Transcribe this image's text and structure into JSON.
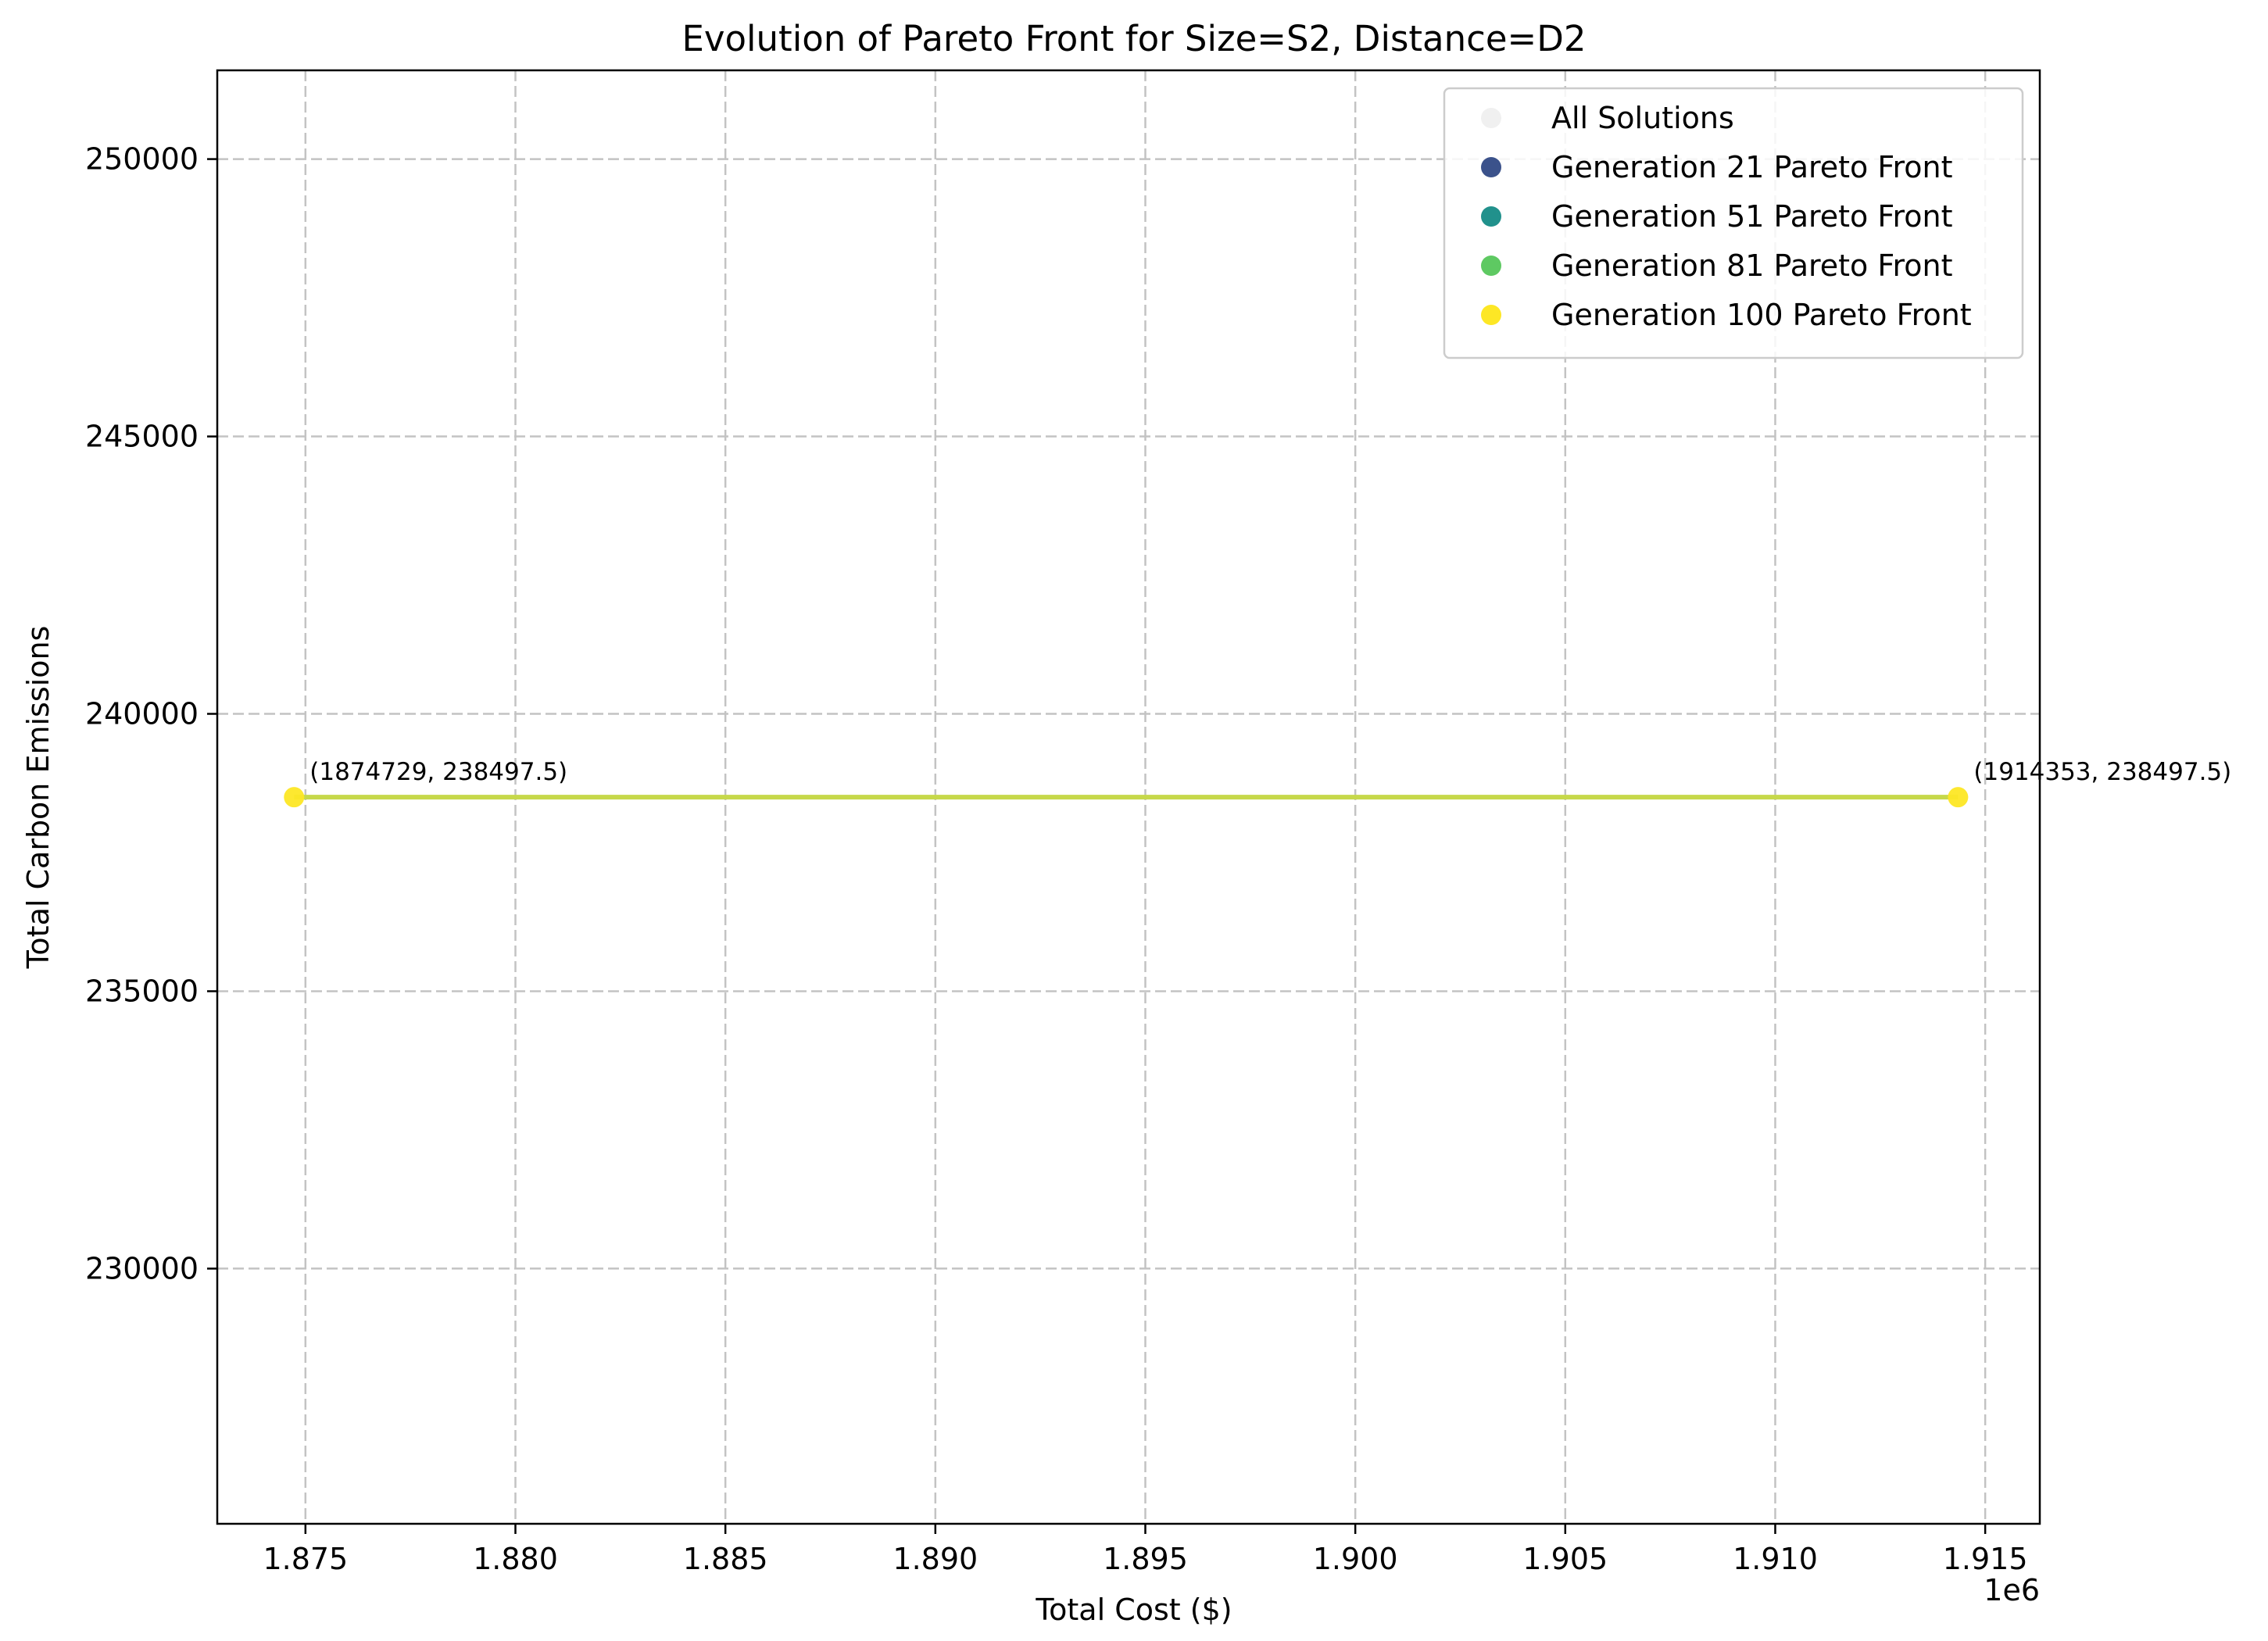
{
  "chart_data": {
    "type": "scatter",
    "title": "Evolution of Pareto Front for Size=S2, Distance=D2",
    "xlabel": "Total Cost ($)",
    "ylabel": "Total Carbon Emissions",
    "x_offset_label": "1e6",
    "xlim": [
      1872900,
      1916300
    ],
    "ylim": [
      225400,
      251600
    ],
    "x_ticks": [
      1875000,
      1880000,
      1885000,
      1890000,
      1895000,
      1900000,
      1905000,
      1910000,
      1915000
    ],
    "x_tick_labels": [
      "1.875",
      "1.880",
      "1.885",
      "1.890",
      "1.895",
      "1.900",
      "1.905",
      "1.910",
      "1.915"
    ],
    "y_ticks": [
      230000,
      235000,
      240000,
      245000,
      250000
    ],
    "y_tick_labels": [
      "230000",
      "235000",
      "240000",
      "245000",
      "250000"
    ],
    "grid": true,
    "legend_position": "top-right",
    "series": [
      {
        "name": "All Solutions",
        "color": "#e6e6e6",
        "alpha": 0.6,
        "connect": false,
        "points": []
      },
      {
        "name": "Generation 21 Pareto Front",
        "color": "#3b528b",
        "connect": true,
        "points": []
      },
      {
        "name": "Generation 51 Pareto Front",
        "color": "#21918c",
        "connect": true,
        "points": []
      },
      {
        "name": "Generation 81 Pareto Front",
        "color": "#5ec962",
        "connect": true,
        "points": []
      },
      {
        "name": "Generation 100 Pareto Front",
        "color": "#fde725",
        "connect": true,
        "points": [
          {
            "x": 1874729,
            "y": 238497.5
          },
          {
            "x": 1914353,
            "y": 238497.5
          }
        ]
      }
    ],
    "front_line_color": "#c6d84a",
    "annotations": [
      {
        "x": 1874729,
        "y": 238497.5,
        "text": "(1874729, 238497.5)"
      },
      {
        "x": 1914353,
        "y": 238497.5,
        "text": "(1914353, 238497.5)"
      }
    ]
  }
}
